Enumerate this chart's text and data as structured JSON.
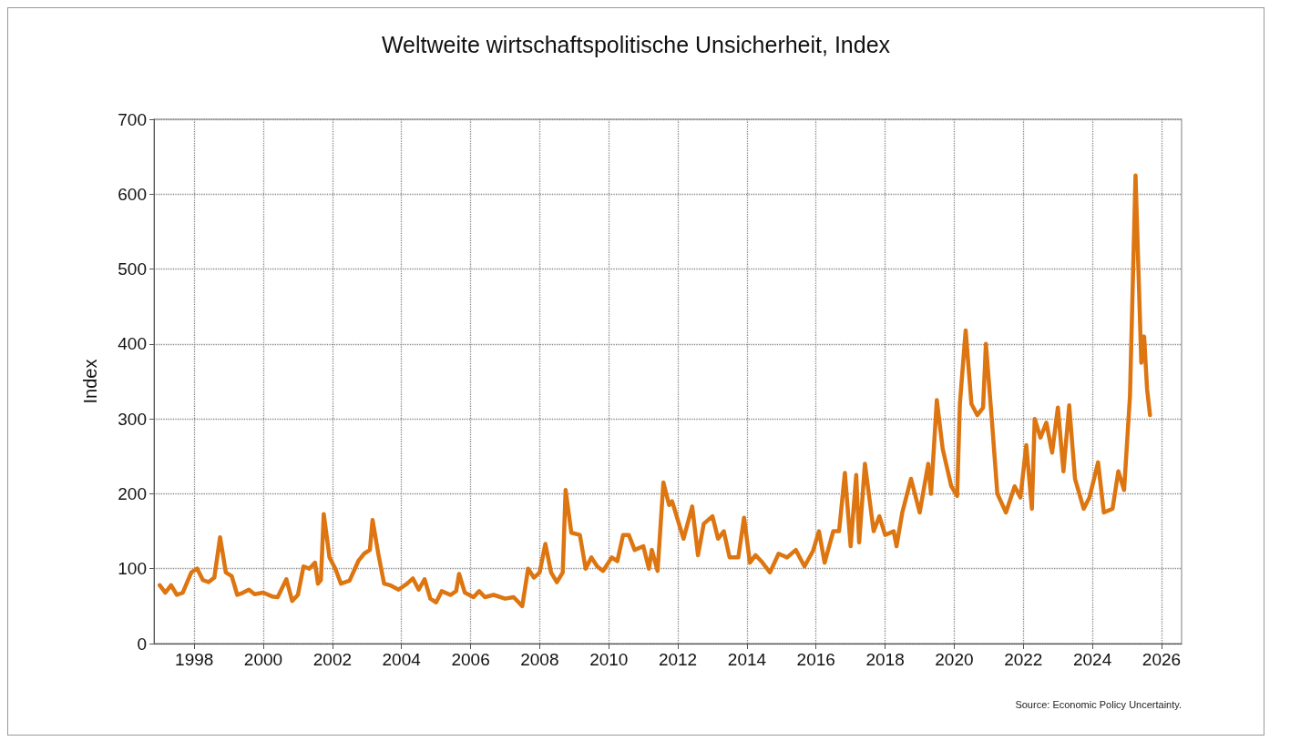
{
  "chart_data": {
    "type": "line",
    "title": "Weltweite wirtschaftspolitische Unsicherheit, Index",
    "ylabel": "Index",
    "annotations": [
      "Source: Economic Policy Uncertainty."
    ],
    "x": [
      "1997-01",
      "1997-03",
      "1997-05",
      "1997-07",
      "1997-09",
      "1997-12",
      "1998-02",
      "1998-04",
      "1998-06",
      "1998-08",
      "1998-10",
      "1998-12",
      "1999-02",
      "1999-04",
      "1999-06",
      "1999-08",
      "1999-10",
      "2000-01",
      "2000-04",
      "2000-06",
      "2000-09",
      "2000-11",
      "2001-01",
      "2001-03",
      "2001-05",
      "2001-07",
      "2001-08",
      "2001-09",
      "2001-10",
      "2001-12",
      "2002-02",
      "2002-04",
      "2002-07",
      "2002-10",
      "2002-12",
      "2003-02",
      "2003-03",
      "2003-05",
      "2003-07",
      "2003-09",
      "2003-12",
      "2004-03",
      "2004-05",
      "2004-07",
      "2004-09",
      "2004-11",
      "2005-01",
      "2005-03",
      "2005-06",
      "2005-08",
      "2005-09",
      "2005-11",
      "2006-02",
      "2006-04",
      "2006-06",
      "2006-09",
      "2007-01",
      "2007-04",
      "2007-07",
      "2007-09",
      "2007-11",
      "2008-01",
      "2008-03",
      "2008-05",
      "2008-07",
      "2008-09",
      "2008-10",
      "2008-12",
      "2009-03",
      "2009-05",
      "2009-07",
      "2009-09",
      "2009-11",
      "2010-02",
      "2010-04",
      "2010-06",
      "2010-08",
      "2010-10",
      "2011-01",
      "2011-03",
      "2011-04",
      "2011-06",
      "2011-08",
      "2011-10",
      "2011-11",
      "2012-03",
      "2012-06",
      "2012-08",
      "2012-10",
      "2013-01",
      "2013-03",
      "2013-05",
      "2013-07",
      "2013-10",
      "2013-12",
      "2014-02",
      "2014-04",
      "2014-06",
      "2014-09",
      "2014-12",
      "2015-03",
      "2015-06",
      "2015-09",
      "2015-12",
      "2016-02",
      "2016-04",
      "2016-07",
      "2016-09",
      "2016-11",
      "2017-01",
      "2017-03",
      "2017-04",
      "2017-06",
      "2017-09",
      "2017-11",
      "2018-01",
      "2018-04",
      "2018-05",
      "2018-07",
      "2018-10",
      "2019-01",
      "2019-04",
      "2019-05",
      "2019-07",
      "2019-09",
      "2019-12",
      "2020-02",
      "2020-03",
      "2020-05",
      "2020-07",
      "2020-09",
      "2020-11",
      "2020-12",
      "2021-02",
      "2021-04",
      "2021-07",
      "2021-10",
      "2021-12",
      "2022-02",
      "2022-04",
      "2022-05",
      "2022-07",
      "2022-09",
      "2022-11",
      "2023-01",
      "2023-03",
      "2023-05",
      "2023-07",
      "2023-10",
      "2023-12",
      "2024-03",
      "2024-05",
      "2024-08",
      "2024-10",
      "2024-12",
      "2025-02",
      "2025-04",
      "2025-06",
      "2025-07",
      "2025-08",
      "2025-09"
    ],
    "series": [
      {
        "color": "#dd7511",
        "values": [
          78,
          68,
          78,
          65,
          68,
          95,
          100,
          85,
          82,
          88,
          142,
          95,
          90,
          65,
          68,
          72,
          66,
          68,
          63,
          62,
          86,
          57,
          65,
          103,
          100,
          108,
          80,
          85,
          173,
          115,
          100,
          80,
          84,
          110,
          120,
          125,
          165,
          120,
          80,
          78,
          72,
          80,
          87,
          72,
          86,
          60,
          55,
          70,
          65,
          70,
          93,
          68,
          62,
          70,
          62,
          65,
          60,
          62,
          50,
          100,
          88,
          95,
          133,
          95,
          82,
          95,
          205,
          148,
          145,
          100,
          115,
          103,
          97,
          115,
          110,
          145,
          145,
          125,
          130,
          100,
          125,
          97,
          215,
          185,
          190,
          140,
          183,
          118,
          160,
          170,
          140,
          150,
          115,
          115,
          168,
          108,
          118,
          110,
          95,
          120,
          115,
          125,
          103,
          124,
          150,
          108,
          150,
          150,
          228,
          130,
          225,
          135,
          240,
          150,
          170,
          145,
          150,
          130,
          175,
          220,
          175,
          240,
          200,
          325,
          260,
          210,
          197,
          320,
          418,
          320,
          305,
          315,
          400,
          300,
          200,
          175,
          210,
          195,
          265,
          180,
          300,
          275,
          295,
          255,
          315,
          230,
          318,
          220,
          180,
          195,
          242,
          175,
          180,
          230,
          205,
          330,
          625,
          375,
          410,
          340,
          305
        ]
      }
    ],
    "xlim": [
      "1996-11",
      "2026-08"
    ],
    "xticks": [
      "1998",
      "2000",
      "2002",
      "2004",
      "2006",
      "2008",
      "2010",
      "2012",
      "2014",
      "2016",
      "2018",
      "2020",
      "2022",
      "2024",
      "2026"
    ],
    "ylim": [
      0,
      700
    ],
    "yticks": [
      0,
      100,
      200,
      300,
      400,
      500,
      600,
      700
    ],
    "grid": true,
    "line_style": "solid",
    "marker": "none"
  }
}
